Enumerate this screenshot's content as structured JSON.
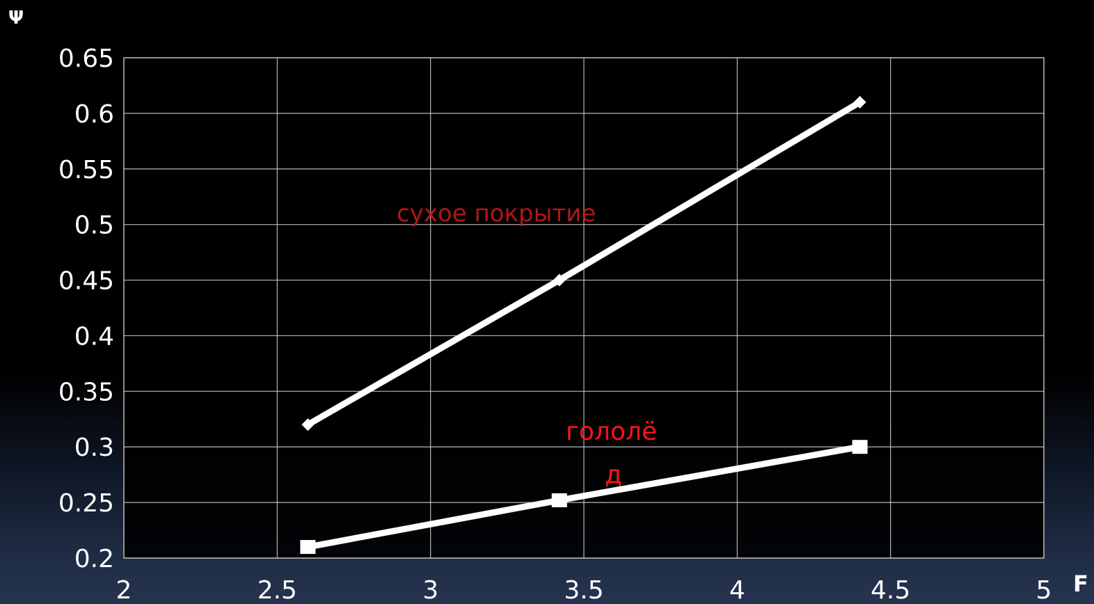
{
  "chart_data": {
    "type": "line",
    "ylabel": "Ψ",
    "xlabel": "F",
    "xlim": [
      2,
      5
    ],
    "ylim": [
      0.2,
      0.65
    ],
    "x_ticks": [
      "2",
      "2.5",
      "3",
      "3.5",
      "4",
      "4.5",
      "5"
    ],
    "y_ticks": [
      "0.65",
      "0.6",
      "0.55",
      "0.5",
      "0.45",
      "0.4",
      "0.35",
      "0.3",
      "0.25",
      "0.2"
    ],
    "grid": true,
    "series": [
      {
        "marker": "diamond",
        "color": "#ffffff",
        "x": [
          2.6,
          3.42,
          4.4
        ],
        "y": [
          0.32,
          0.45,
          0.61
        ]
      },
      {
        "marker": "square",
        "color": "#ffffff",
        "x": [
          2.6,
          3.42,
          4.4
        ],
        "y": [
          0.21,
          0.252,
          0.3
        ]
      }
    ],
    "annotations": [
      {
        "key": "dry",
        "text": "сухое покрытие",
        "color": "#c41a1a"
      },
      {
        "key": "ice_line1",
        "text": "гололё",
        "color": "#ff1414"
      },
      {
        "key": "ice_line2",
        "text": "д",
        "color": "#ff1414"
      }
    ]
  }
}
